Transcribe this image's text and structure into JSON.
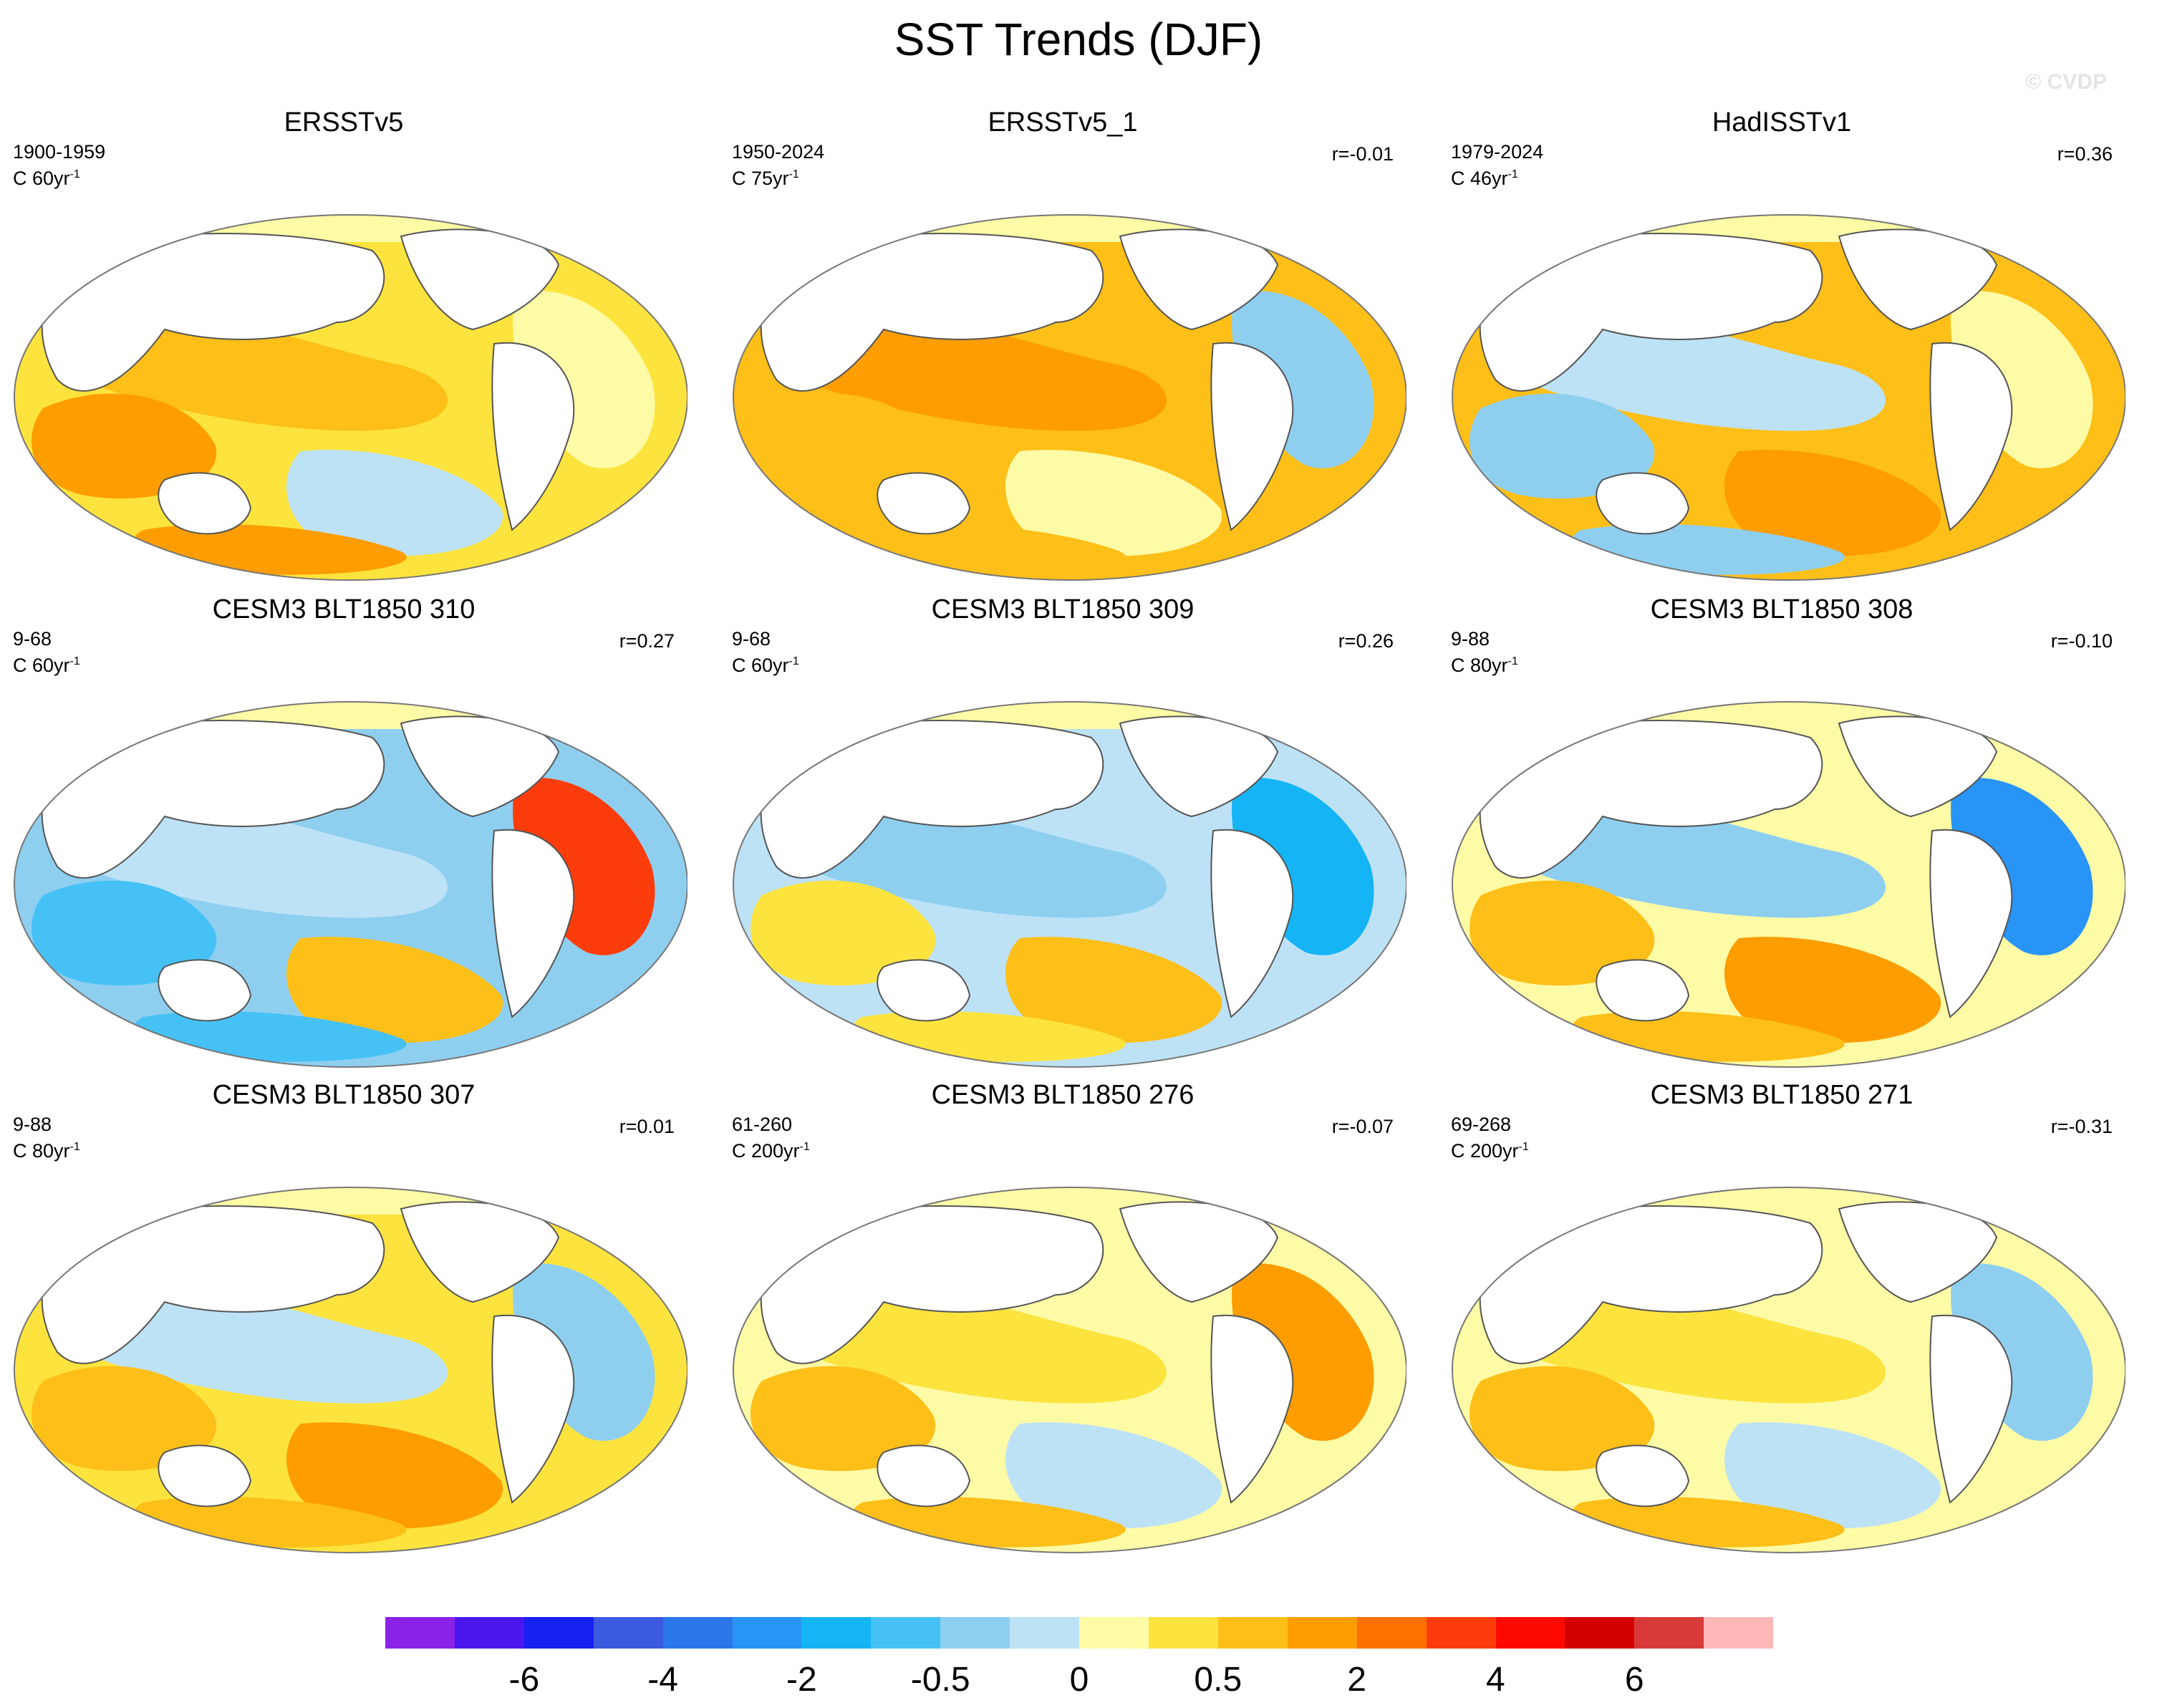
{
  "title": "SST Trends (DJF)",
  "watermark": "© CVDP",
  "panels": [
    {
      "title": "ERSSTv5",
      "period": "1900-1959",
      "scale": "C 60yr",
      "sup": "-1",
      "corr": ""
    },
    {
      "title": "ERSSTv5_1",
      "period": "1950-2024",
      "scale": "C 75yr",
      "sup": "-1",
      "corr": "r=-0.01"
    },
    {
      "title": "HadISSTv1",
      "period": "1979-2024",
      "scale": "C 46yr",
      "sup": "-1",
      "corr": "r=0.36"
    },
    {
      "title": "CESM3 BLT1850 310",
      "period": "9-68",
      "scale": "C 60yr",
      "sup": "-1",
      "corr": "r=0.27"
    },
    {
      "title": "CESM3 BLT1850 309",
      "period": "9-68",
      "scale": "C 60yr",
      "sup": "-1",
      "corr": "r=0.26"
    },
    {
      "title": "CESM3 BLT1850 308",
      "period": "9-88",
      "scale": "C 80yr",
      "sup": "-1",
      "corr": "r=-0.10"
    },
    {
      "title": "CESM3 BLT1850 307",
      "period": "9-88",
      "scale": "C 80yr",
      "sup": "-1",
      "corr": "r=0.01"
    },
    {
      "title": "CESM3 BLT1850 276",
      "period": "61-260",
      "scale": "C 200yr",
      "sup": "-1",
      "corr": "r=-0.07"
    },
    {
      "title": "CESM3 BLT1850 271",
      "period": "69-268",
      "scale": "C 200yr",
      "sup": "-1",
      "corr": "r=-0.31"
    }
  ],
  "legend": {
    "colors": [
      "#8b22e8",
      "#4b17ef",
      "#1721f0",
      "#3c5ae0",
      "#2b77ea",
      "#2894f5",
      "#14b4f5",
      "#46c1f5",
      "#8ecff0",
      "#bde2f6",
      "#fefba6",
      "#fde33e",
      "#fdbf18",
      "#fd9d00",
      "#fd7100",
      "#fd3c0c",
      "#fc0a00",
      "#d40000",
      "#d83a3a",
      "#fdb7b7"
    ],
    "labels": [
      "-6",
      "-4",
      "-2",
      "-0.5",
      "0",
      "0.5",
      "2",
      "4",
      "6"
    ]
  }
}
